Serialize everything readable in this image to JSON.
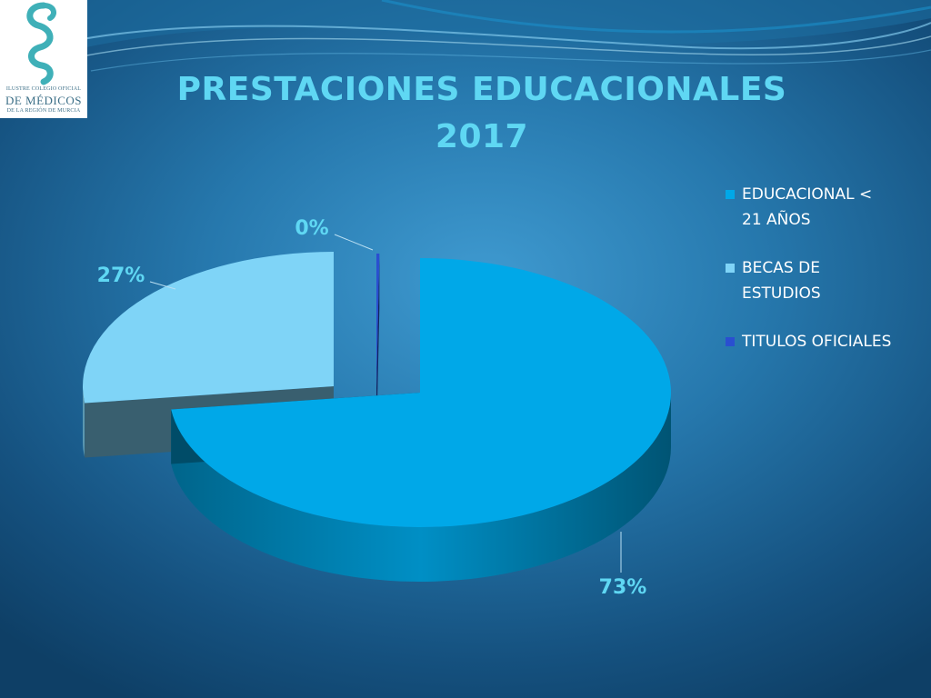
{
  "logo": {
    "line1": "ILUSTRE COLEGIO OFICIAL",
    "line2": "DE MÉDICOS",
    "line3": "DE LA REGIÓN DE MURCIA"
  },
  "title_line1": "PRESTACIONES EDUCACIONALES",
  "title_line2": "2017",
  "chart_data": {
    "type": "pie",
    "title": "PRESTACIONES EDUCACIONALES 2017",
    "style": "3d-exploded",
    "legend_position": "right",
    "slices": [
      {
        "label": "EDUCACIONAL < 21 AÑOS",
        "value": 73,
        "data_label": "73%",
        "color": "#00a8e8"
      },
      {
        "label": "BECAS DE ESTUDIOS",
        "value": 27,
        "data_label": "27%",
        "color": "#7fd4f7"
      },
      {
        "label": "TITULOS OFICIALES",
        "value": 0,
        "data_label": "0%",
        "color": "#2a4fd0"
      }
    ]
  },
  "colors": {
    "title": "#5fd7f3",
    "legend_text": "#ffffff",
    "background_center": "#3f9ad0",
    "background_edge": "#0e3f66"
  }
}
